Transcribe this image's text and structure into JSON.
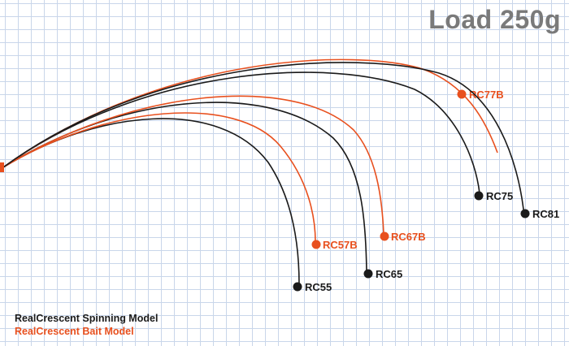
{
  "title": "Load 250g",
  "colors": {
    "spinning": "#1a1a1a",
    "bait": "#e8501e",
    "title": "#7a7a7a"
  },
  "legend": {
    "spinning": "RealCrescent Spinning Model",
    "bait": "RealCrescent Bait Model"
  },
  "rods": [
    {
      "label": "RC55",
      "type": "spinning"
    },
    {
      "label": "RC57B",
      "type": "bait"
    },
    {
      "label": "RC65",
      "type": "spinning"
    },
    {
      "label": "RC67B",
      "type": "bait"
    },
    {
      "label": "RC75",
      "type": "spinning"
    },
    {
      "label": "RC77B",
      "type": "bait"
    },
    {
      "label": "RC81",
      "type": "spinning"
    }
  ]
}
